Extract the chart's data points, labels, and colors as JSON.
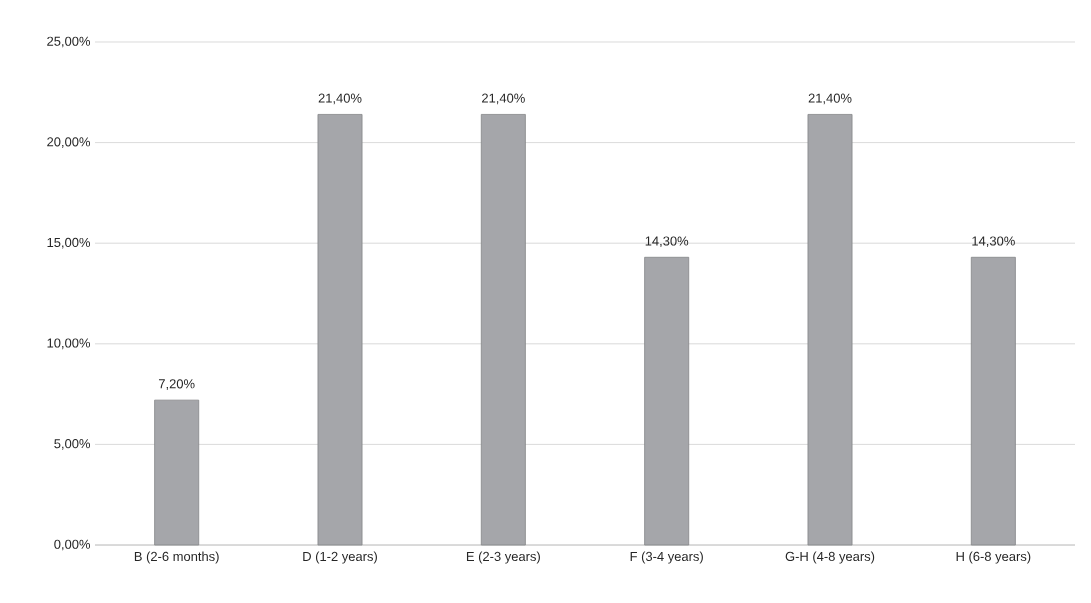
{
  "chart_data": {
    "type": "bar",
    "categories": [
      "B (2-6 months)",
      "D (1-2 years)",
      "E (2-3 years)",
      "F (3-4 years)",
      "G-H (4-8 years)",
      "H (6-8 years)"
    ],
    "values": [
      7.2,
      21.4,
      21.4,
      14.3,
      21.4,
      14.3
    ],
    "value_labels": [
      "7,20%",
      "21,40%",
      "21,40%",
      "14,30%",
      "21,40%",
      "14,30%"
    ],
    "color": "#a5a6aa",
    "ylim": [
      0,
      25
    ],
    "yticks": [
      {
        "value": 0,
        "label": "0,00%"
      },
      {
        "value": 5,
        "label": "5,00%"
      },
      {
        "value": 10,
        "label": "10,00%"
      },
      {
        "value": 15,
        "label": "15,00%"
      },
      {
        "value": 20,
        "label": "20,00%"
      },
      {
        "value": 25,
        "label": "25,00%"
      }
    ],
    "grid": "y"
  }
}
